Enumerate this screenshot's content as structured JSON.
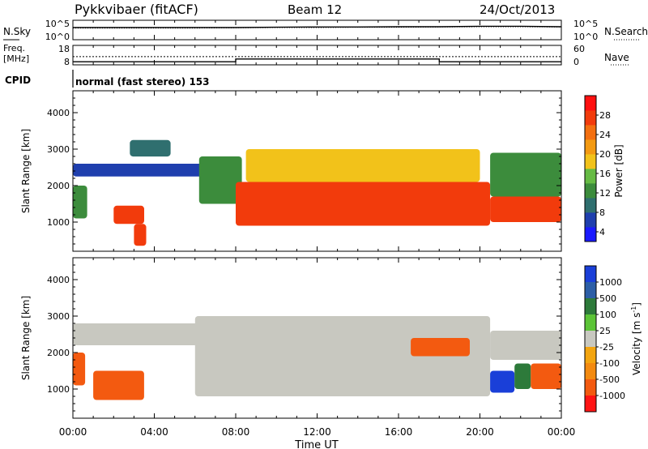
{
  "header": {
    "title": "Pykkvibaer (fitACF)",
    "beam": "Beam 12",
    "date": "24/Oct/2013"
  },
  "colors": {
    "power_scale": [
      "#1a1aff",
      "#1f3fae",
      "#2f6f6f",
      "#3c8c3c",
      "#66bb44",
      "#f2c21a",
      "#f39a12",
      "#f36f10",
      "#f23b0c",
      "#ff1010"
    ],
    "velocity_scale": [
      "#1a3fd8",
      "#2c5ea6",
      "#2d7a3a",
      "#5cc437",
      "#c8c8c0",
      "#f3a510",
      "#f38a10",
      "#f35a10",
      "#ff1414"
    ]
  },
  "chart_data": [
    {
      "type": "line",
      "panel": "sky-noise / search-noise",
      "left_label": "N.Sky",
      "right_label": "N.Search",
      "left_ticks": [
        "10^5",
        "10^0"
      ],
      "right_ticks": [
        "10^5",
        "10^0"
      ],
      "series": [
        {
          "name": "N.Sky",
          "x_hours": [
            0,
            2,
            4,
            6,
            8,
            10,
            12,
            14,
            16,
            18,
            20,
            22,
            24
          ],
          "log10_values": [
            4.7,
            4.7,
            4.7,
            4.7,
            4.7,
            4.8,
            4.9,
            4.9,
            5.0,
            5.0,
            5.2,
            5.2,
            5.0
          ]
        },
        {
          "name": "N.Search",
          "x_hours": [
            0,
            2,
            4,
            6,
            8,
            10,
            12,
            14,
            16,
            18,
            20,
            22,
            24
          ],
          "log10_values": [
            4.5,
            4.5,
            4.5,
            4.5,
            4.6,
            4.7,
            4.7,
            4.8,
            4.8,
            4.9,
            5.0,
            5.0,
            4.9
          ]
        }
      ]
    },
    {
      "type": "line",
      "panel": "frequency / nave",
      "left_label_line1": "Freq.",
      "left_label_line2": "[MHz]",
      "right_label": "Nave",
      "left_ticks": [
        "18",
        "8"
      ],
      "right_ticks": [
        "60",
        "0"
      ],
      "series": [
        {
          "name": "Freq.",
          "x_hours": [
            0,
            8.0,
            8.0,
            18.0,
            18.0,
            24
          ],
          "values": [
            10.4,
            10.4,
            12.5,
            12.5,
            10.4,
            10.4
          ]
        },
        {
          "name": "Nave",
          "x_hours": [
            0,
            24
          ],
          "values": [
            38,
            38
          ]
        }
      ],
      "ylim_left": [
        8,
        18
      ],
      "ylim_right": [
        0,
        60
      ]
    },
    {
      "type": "text",
      "panel": "cpid",
      "label": "CPID",
      "value": "normal (fast stereo) 153"
    },
    {
      "type": "heatmap",
      "panel": "power",
      "ylabel": "Slant Range [km]",
      "y_ticks": [
        "1000",
        "2000",
        "3000",
        "4000"
      ],
      "ylim": [
        200,
        4600
      ],
      "xlim_hours": [
        0,
        24
      ],
      "colorbar_label": "Power [dB]",
      "colorbar_ticks": [
        "4",
        "8",
        "12",
        "16",
        "20",
        "24",
        "28"
      ],
      "regions": [
        {
          "t0": 0.0,
          "t1": 6.5,
          "r0": 2250,
          "r1": 2600,
          "value_db": 6
        },
        {
          "t0": 0.0,
          "t1": 0.7,
          "r0": 1100,
          "r1": 2000,
          "value_db": 12
        },
        {
          "t0": 2.0,
          "t1": 3.5,
          "r0": 950,
          "r1": 1450,
          "value_db": 26
        },
        {
          "t0": 3.0,
          "t1": 3.6,
          "r0": 350,
          "r1": 950,
          "value_db": 28
        },
        {
          "t0": 2.8,
          "t1": 4.8,
          "r0": 2800,
          "r1": 3250,
          "value_db": 8
        },
        {
          "t0": 6.2,
          "t1": 8.3,
          "r0": 1500,
          "r1": 2800,
          "value_db": 12
        },
        {
          "t0": 8.0,
          "t1": 20.5,
          "r0": 900,
          "r1": 2100,
          "value_db": 28
        },
        {
          "t0": 8.5,
          "t1": 20.0,
          "r0": 2100,
          "r1": 3000,
          "value_db": 18
        },
        {
          "t0": 20.5,
          "t1": 24.0,
          "r0": 1000,
          "r1": 1700,
          "value_db": 27
        },
        {
          "t0": 20.5,
          "t1": 24.0,
          "r0": 1700,
          "r1": 2900,
          "value_db": 13
        }
      ]
    },
    {
      "type": "heatmap",
      "panel": "velocity",
      "ylabel": "Slant Range [km]",
      "y_ticks": [
        "1000",
        "2000",
        "3000",
        "4000"
      ],
      "ylim": [
        200,
        4600
      ],
      "xlim_hours": [
        0,
        24
      ],
      "colorbar_label": "Velocity [m s",
      "colorbar_label_sup": "-1",
      "colorbar_label_end": "]",
      "colorbar_ticks": [
        "1000",
        "500",
        "100",
        "25",
        "-25",
        "-100",
        "-500",
        "-1000"
      ],
      "regions": [
        {
          "t0": 0.0,
          "t1": 6.5,
          "r0": 2200,
          "r1": 2800,
          "value_ms": 0
        },
        {
          "t0": 0.0,
          "t1": 0.6,
          "r0": 1100,
          "r1": 2000,
          "value_ms": -300
        },
        {
          "t0": 1.0,
          "t1": 3.5,
          "r0": 700,
          "r1": 1500,
          "value_ms": -300
        },
        {
          "t0": 6.0,
          "t1": 20.5,
          "r0": 800,
          "r1": 3000,
          "value_ms": 0
        },
        {
          "t0": 16.6,
          "t1": 19.5,
          "r0": 1900,
          "r1": 2400,
          "value_ms": -300
        },
        {
          "t0": 20.5,
          "t1": 21.7,
          "r0": 900,
          "r1": 1500,
          "value_ms": 800
        },
        {
          "t0": 21.7,
          "t1": 22.5,
          "r0": 1000,
          "r1": 1700,
          "value_ms": 150
        },
        {
          "t0": 22.5,
          "t1": 24.0,
          "r0": 1000,
          "r1": 1700,
          "value_ms": -300
        },
        {
          "t0": 20.5,
          "t1": 24.0,
          "r0": 1800,
          "r1": 2600,
          "value_ms": 0
        }
      ]
    },
    {
      "type": "axis",
      "panel": "time",
      "xlabel": "Time UT",
      "x_ticks": [
        "00:00",
        "04:00",
        "08:00",
        "12:00",
        "16:00",
        "20:00",
        "00:00"
      ]
    }
  ]
}
